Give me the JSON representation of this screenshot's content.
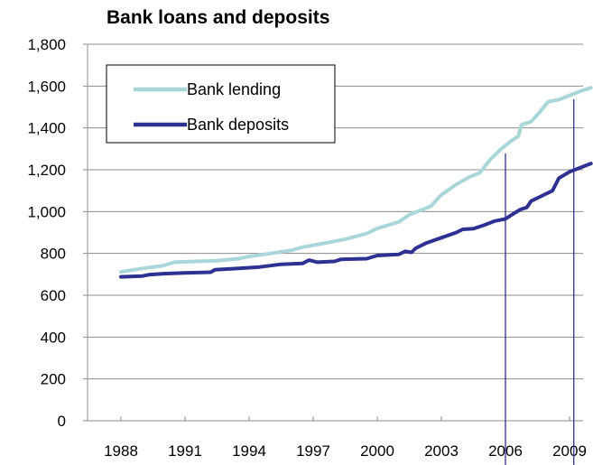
{
  "chart_data": {
    "type": "line",
    "title": "Bank loans and deposits",
    "xlabel": "",
    "ylabel": "",
    "xlim": [
      1988,
      2010
    ],
    "ylim": [
      0,
      1800
    ],
    "y_ticks": [
      0,
      200,
      400,
      600,
      800,
      1000,
      1200,
      1400,
      1600,
      1800
    ],
    "y_tick_labels": [
      "0",
      "200",
      "400",
      "600",
      "800",
      "1,000",
      "1,200",
      "1,400",
      "1,600",
      "1,800"
    ],
    "x_ticks": [
      1988,
      1991,
      1994,
      1997,
      2000,
      2003,
      2006,
      2009
    ],
    "x_tick_labels": [
      "1988",
      "1991",
      "1994",
      "1997",
      "2000",
      "2003",
      "2006",
      "2009"
    ],
    "grid": true,
    "legend_position": "top-left",
    "vertical_markers": [
      2006,
      2009.2
    ],
    "series": [
      {
        "name": "Bank lending",
        "color": "#a9d6d8",
        "points": [
          [
            1988,
            712
          ],
          [
            1989,
            728
          ],
          [
            1990,
            742
          ],
          [
            1990.5,
            758
          ],
          [
            1991.5,
            762
          ],
          [
            1992.5,
            765
          ],
          [
            1993.5,
            775
          ],
          [
            1994,
            785
          ],
          [
            1995,
            800
          ],
          [
            1996,
            815
          ],
          [
            1996.5,
            830
          ],
          [
            1997.5,
            848
          ],
          [
            1998.5,
            868
          ],
          [
            1999.5,
            895
          ],
          [
            2000,
            920
          ],
          [
            2001,
            950
          ],
          [
            2001.5,
            985
          ],
          [
            2002.5,
            1025
          ],
          [
            2003,
            1080
          ],
          [
            2003.7,
            1130
          ],
          [
            2004.3,
            1165
          ],
          [
            2004.8,
            1185
          ],
          [
            2005.3,
            1250
          ],
          [
            2005.8,
            1300
          ],
          [
            2006.3,
            1340
          ],
          [
            2006.6,
            1360
          ],
          [
            2006.75,
            1415
          ],
          [
            2007.2,
            1430
          ],
          [
            2007.6,
            1475
          ],
          [
            2008.0,
            1525
          ],
          [
            2008.5,
            1535
          ],
          [
            2009.0,
            1555
          ],
          [
            2009.5,
            1575
          ],
          [
            2010.0,
            1592
          ]
        ]
      },
      {
        "name": "Bank deposits",
        "color": "#2e3192",
        "points": [
          [
            1988,
            688
          ],
          [
            1989,
            692
          ],
          [
            1989.3,
            698
          ],
          [
            1990,
            703
          ],
          [
            1991,
            707
          ],
          [
            1992.2,
            710
          ],
          [
            1992.4,
            722
          ],
          [
            1993.5,
            728
          ],
          [
            1994.5,
            735
          ],
          [
            1995.5,
            748
          ],
          [
            1996.5,
            752
          ],
          [
            1996.8,
            768
          ],
          [
            1997.2,
            758
          ],
          [
            1998,
            762
          ],
          [
            1998.3,
            772
          ],
          [
            1999.5,
            775
          ],
          [
            2000,
            790
          ],
          [
            2001,
            795
          ],
          [
            2001.3,
            810
          ],
          [
            2001.6,
            805
          ],
          [
            2001.8,
            825
          ],
          [
            2002.3,
            850
          ],
          [
            2003,
            875
          ],
          [
            2003.7,
            900
          ],
          [
            2004,
            915
          ],
          [
            2004.5,
            918
          ],
          [
            2005,
            935
          ],
          [
            2005.5,
            955
          ],
          [
            2006,
            965
          ],
          [
            2006.3,
            985
          ],
          [
            2006.7,
            1010
          ],
          [
            2007,
            1020
          ],
          [
            2007.2,
            1050
          ],
          [
            2007.7,
            1075
          ],
          [
            2008.2,
            1100
          ],
          [
            2008.5,
            1160
          ],
          [
            2009.0,
            1190
          ],
          [
            2009.5,
            1210
          ],
          [
            2010.0,
            1230
          ]
        ]
      }
    ]
  }
}
